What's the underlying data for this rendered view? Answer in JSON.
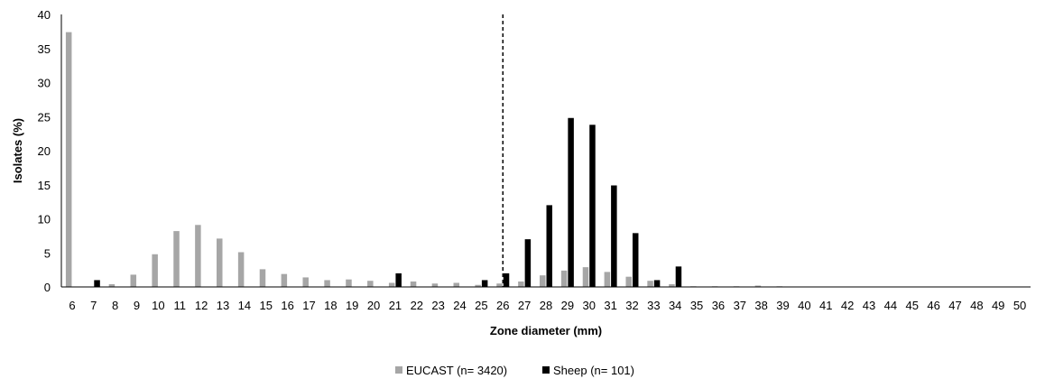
{
  "chart_data": {
    "type": "bar",
    "xlabel": "Zone diameter (mm)",
    "ylabel": "Isolates (%)",
    "ylim": [
      0,
      40
    ],
    "yticks": [
      0,
      5,
      10,
      15,
      20,
      25,
      30,
      35,
      40
    ],
    "grid": false,
    "legend_position": "bottom",
    "categories": [
      "6",
      "7",
      "8",
      "9",
      "10",
      "11",
      "12",
      "13",
      "14",
      "15",
      "16",
      "17",
      "18",
      "19",
      "20",
      "21",
      "22",
      "23",
      "24",
      "25",
      "26",
      "27",
      "28",
      "29",
      "30",
      "31",
      "32",
      "33",
      "34",
      "35",
      "36",
      "37",
      "38",
      "39",
      "40",
      "41",
      "42",
      "43",
      "44",
      "45",
      "46",
      "47",
      "48",
      "49",
      "50"
    ],
    "series": [
      {
        "name": "EUCAST (n= 3420)",
        "color": "#a6a6a6",
        "values": [
          37.4,
          0,
          0.4,
          1.8,
          4.8,
          8.2,
          9.1,
          7.1,
          5.1,
          2.6,
          1.9,
          1.4,
          1.0,
          1.1,
          0.9,
          0.6,
          0.8,
          0.5,
          0.6,
          0.3,
          0.5,
          0.8,
          1.7,
          2.4,
          2.9,
          2.2,
          1.5,
          0.9,
          0.4,
          0.1,
          0.1,
          0.1,
          0.2,
          0.1,
          0.05,
          0.05,
          0.05,
          0.05,
          0.05,
          0.05,
          0.05,
          0.05,
          0.05,
          0.05,
          0.05
        ]
      },
      {
        "name": "Sheep (n= 101)",
        "color": "#000000",
        "values": [
          0,
          1,
          0,
          0,
          0,
          0,
          0,
          0,
          0,
          0,
          0,
          0,
          0,
          0,
          0,
          2,
          0,
          0,
          0,
          1,
          2,
          7,
          12,
          24.8,
          23.8,
          14.9,
          7.9,
          1,
          3,
          0,
          0,
          0,
          0,
          0,
          0,
          0,
          0,
          0,
          0,
          0,
          0,
          0,
          0,
          0,
          0
        ]
      }
    ],
    "breakpoint_line": {
      "x": 26,
      "style": "dashed"
    }
  }
}
